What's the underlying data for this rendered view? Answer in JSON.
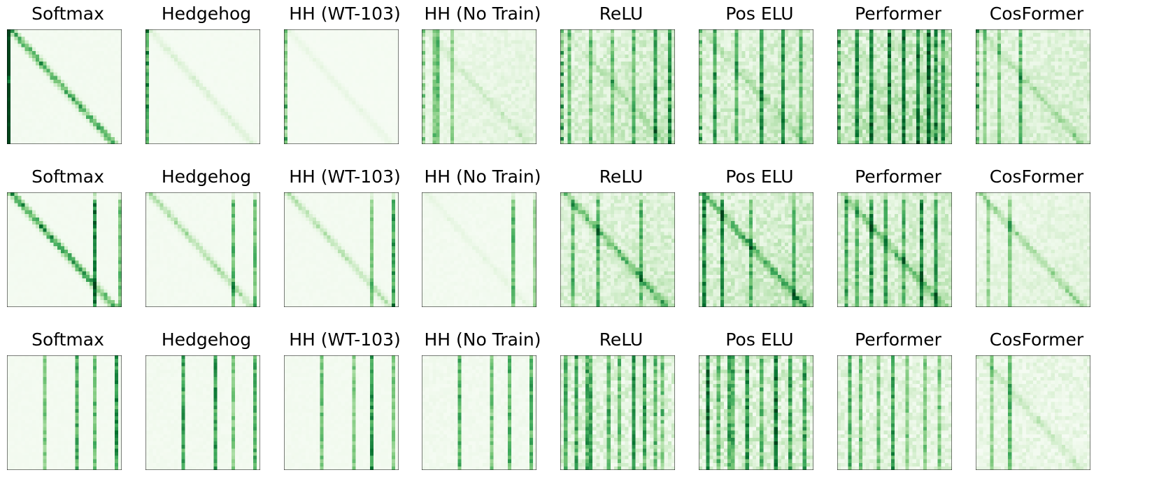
{
  "chart_data": {
    "type": "heatmap",
    "colormap": "Greens",
    "matrix_size": 32,
    "grid": false,
    "axis_ticks": false,
    "rows": [
      {
        "pattern": "diagonal-with-first-column",
        "panels": [
          {
            "title": "Softmax",
            "intensity": 0.9,
            "diagonal": 0.85,
            "columns": [
              0
            ],
            "noise": 0.04
          },
          {
            "title": "Hedgehog",
            "intensity": 0.55,
            "diagonal": 0.35,
            "columns": [
              0
            ],
            "noise": 0.05
          },
          {
            "title": "HH (WT-103)",
            "intensity": 0.45,
            "diagonal": 0.25,
            "columns": [
              0
            ],
            "noise": 0.05
          },
          {
            "title": "HH (No Train)",
            "intensity": 0.55,
            "diagonal": 0.3,
            "columns": [
              3,
              4,
              8
            ],
            "noise": 0.35
          },
          {
            "title": "ReLU",
            "intensity": 0.65,
            "diagonal": 0.25,
            "columns": [
              2,
              8,
              14,
              20,
              26,
              30
            ],
            "noise": 0.55
          },
          {
            "title": "Pos ELU",
            "intensity": 0.65,
            "diagonal": 0.3,
            "columns": [
              4,
              10,
              17,
              23,
              28
            ],
            "noise": 0.55
          },
          {
            "title": "Performer",
            "intensity": 0.8,
            "diagonal": 0.1,
            "columns": [
              5,
              9,
              14,
              18,
              22,
              25,
              27,
              29
            ],
            "noise": 0.6
          },
          {
            "title": "CosFormer",
            "intensity": 0.65,
            "diagonal": 0.4,
            "columns": [
              2,
              6,
              12
            ],
            "noise": 0.45
          }
        ]
      },
      {
        "pattern": "diagonal-with-late-columns",
        "panels": [
          {
            "title": "Softmax",
            "intensity": 0.95,
            "diagonal": 0.9,
            "columns": [
              24,
              31
            ],
            "noise": 0.02
          },
          {
            "title": "Hedgehog",
            "intensity": 0.8,
            "diagonal": 0.5,
            "columns": [
              24,
              30
            ],
            "noise": 0.04
          },
          {
            "title": "HH (WT-103)",
            "intensity": 0.85,
            "diagonal": 0.4,
            "columns": [
              24,
              30
            ],
            "noise": 0.04
          },
          {
            "title": "HH (No Train)",
            "intensity": 0.7,
            "diagonal": 0.15,
            "columns": [
              25,
              31
            ],
            "noise": 0.08
          },
          {
            "title": "ReLU",
            "intensity": 0.7,
            "diagonal": 0.75,
            "columns": [
              3,
              10,
              22
            ],
            "noise": 0.45
          },
          {
            "title": "Pos ELU",
            "intensity": 0.75,
            "diagonal": 0.8,
            "columns": [
              1,
              6,
              14,
              26
            ],
            "noise": 0.5
          },
          {
            "title": "Performer",
            "intensity": 0.7,
            "diagonal": 0.6,
            "columns": [
              2,
              5,
              9,
              13,
              18,
              23,
              27
            ],
            "noise": 0.5
          },
          {
            "title": "CosFormer",
            "intensity": 0.6,
            "diagonal": 0.6,
            "columns": [
              3,
              9
            ],
            "noise": 0.35
          }
        ]
      },
      {
        "pattern": "vertical-stripes",
        "panels": [
          {
            "title": "Softmax",
            "intensity": 0.95,
            "diagonal": 0.0,
            "columns": [
              10,
              19,
              24,
              30
            ],
            "noise": 0.03
          },
          {
            "title": "Hedgehog",
            "intensity": 0.9,
            "diagonal": 0.0,
            "columns": [
              10,
              19,
              24,
              30
            ],
            "noise": 0.06
          },
          {
            "title": "HH (WT-103)",
            "intensity": 0.9,
            "diagonal": 0.0,
            "columns": [
              10,
              19,
              24,
              30
            ],
            "noise": 0.05
          },
          {
            "title": "HH (No Train)",
            "intensity": 0.75,
            "diagonal": 0.0,
            "columns": [
              10,
              19,
              24,
              30
            ],
            "noise": 0.12
          },
          {
            "title": "ReLU",
            "intensity": 0.75,
            "diagonal": 0.0,
            "columns": [
              1,
              4,
              7,
              8,
              13,
              16,
              20,
              23,
              26,
              28
            ],
            "noise": 0.55
          },
          {
            "title": "Pos ELU",
            "intensity": 0.8,
            "diagonal": 0.0,
            "columns": [
              2,
              5,
              8,
              9,
              13,
              17,
              21,
              25,
              29
            ],
            "noise": 0.6
          },
          {
            "title": "Performer",
            "intensity": 0.7,
            "diagonal": 0.0,
            "columns": [
              3,
              6,
              11,
              15,
              19,
              24,
              28
            ],
            "noise": 0.5
          },
          {
            "title": "CosFormer",
            "intensity": 0.65,
            "diagonal": 0.3,
            "columns": [
              4,
              9
            ],
            "noise": 0.4
          }
        ]
      }
    ]
  }
}
